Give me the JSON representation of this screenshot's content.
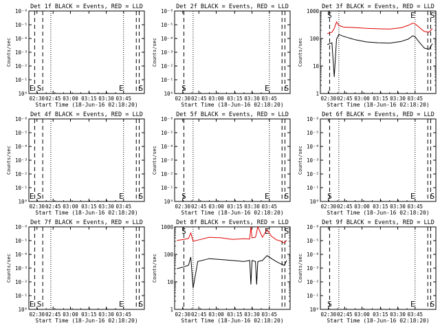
{
  "page": {
    "background": "#ffffff",
    "ink": "#000000",
    "red": "#e00000"
  },
  "chart_data": [
    {
      "type": "line",
      "title": "Det 1f BLACK = Events, RED = LLD",
      "xlabel": "Start Time (18-Jun-16 02:18:20)",
      "ylabel": "Counts/sec",
      "x_ticks": [
        "02:30",
        "02:45",
        "03:00",
        "03:15",
        "03:30",
        "03:45"
      ],
      "y_ticks": [
        "10⁰",
        "10⁻¹",
        "10⁻²",
        "10⁻³",
        "10⁻⁴",
        "10⁻⁵",
        "10⁻⁶"
      ],
      "markers": [
        "E",
        "S",
        "E",
        "S"
      ],
      "series": []
    },
    {
      "type": "line",
      "title": "Det 2f BLACK = Events, RED = LLD",
      "xlabel": "Start Time (18-Jun-16 02:18:20)",
      "ylabel": "Counts/sec",
      "x_ticks": [
        "02:30",
        "02:45",
        "03:00",
        "03:15",
        "03:30",
        "03:45"
      ],
      "y_ticks": [
        "10⁰",
        "10⁻¹",
        "10⁻²",
        "10⁻³",
        "10⁻⁴",
        "10⁻⁵",
        "10⁻⁶"
      ],
      "markers": [
        "S",
        "E",
        "S"
      ],
      "series": []
    },
    {
      "type": "line",
      "title": "Det 3f BLACK = Events, RED = LLD",
      "xlabel": "Start Time (18-Jun-16 02:18:20)",
      "ylabel": "Counts/sec",
      "x_ticks": [
        "02:30",
        "02:45",
        "03:00",
        "03:15",
        "03:30",
        "03:45"
      ],
      "y_ticks": [
        "1",
        "10",
        "100",
        "1000"
      ],
      "ylog": true,
      "ylim": [
        1,
        1000
      ],
      "markers": [
        "S",
        "E",
        "S"
      ],
      "series": [
        {
          "color": "red",
          "x": [
            0.06,
            0.1,
            0.12,
            0.14,
            0.16,
            0.2,
            0.3,
            0.4,
            0.5,
            0.6,
            0.7,
            0.76,
            0.8,
            0.82,
            0.86,
            0.9,
            0.94,
            0.97
          ],
          "y": [
            150,
            170,
            230,
            400,
            300,
            260,
            250,
            235,
            225,
            220,
            245,
            300,
            360,
            340,
            245,
            180,
            170,
            230
          ]
        },
        {
          "color": "black",
          "x": [
            0.06,
            0.1,
            0.12,
            0.14,
            0.16,
            0.2,
            0.3,
            0.4,
            0.5,
            0.6,
            0.7,
            0.76,
            0.8,
            0.82,
            0.86,
            0.9,
            0.94,
            0.97
          ],
          "y": [
            60,
            70,
            4,
            95,
            140,
            120,
            90,
            75,
            70,
            68,
            78,
            95,
            125,
            115,
            70,
            45,
            40,
            65
          ]
        }
      ]
    },
    {
      "type": "line",
      "title": "Det 4f BLACK = Events, RED = LLD",
      "xlabel": "Start Time (18-Jun-16 02:18:20)",
      "ylabel": "Counts/sec",
      "x_ticks": [
        "02:30",
        "02:45",
        "03:00",
        "03:15",
        "03:30",
        "03:45"
      ],
      "y_ticks": [
        "10⁰",
        "10⁻¹",
        "10⁻²",
        "10⁻³",
        "10⁻⁴",
        "10⁻⁵",
        "10⁻⁶"
      ],
      "markers": [
        "E",
        "S",
        "E",
        "S"
      ],
      "series": []
    },
    {
      "type": "line",
      "title": "Det 5f BLACK = Events, RED = LLD",
      "xlabel": "Start Time (18-Jun-16 02:18:20)",
      "ylabel": "Counts/sec",
      "x_ticks": [
        "02:30",
        "02:45",
        "03:00",
        "03:15",
        "03:30",
        "03:45"
      ],
      "y_ticks": [
        "10⁰",
        "10⁻¹",
        "10⁻²",
        "10⁻³",
        "10⁻⁴",
        "10⁻⁵",
        "10⁻⁶"
      ],
      "markers": [
        "S",
        "E",
        "S"
      ],
      "series": []
    },
    {
      "type": "line",
      "title": "Det 6f BLACK = Events, RED = LLD",
      "xlabel": "Start Time (18-Jun-16 02:18:20)",
      "ylabel": "Counts/sec",
      "x_ticks": [
        "02:30",
        "02:45",
        "03:00",
        "03:15",
        "03:30",
        "03:45"
      ],
      "y_ticks": [
        "10⁰",
        "10⁻¹",
        "10⁻²",
        "10⁻³",
        "10⁻⁴",
        "10⁻⁵",
        "10⁻⁶"
      ],
      "markers": [
        "S",
        "E",
        "S"
      ],
      "series": []
    },
    {
      "type": "line",
      "title": "Det 7f BLACK = Events, RED = LLD",
      "xlabel": "Start Time (18-Jun-16 02:18:20)",
      "ylabel": "Counts/sec",
      "x_ticks": [
        "02:30",
        "02:45",
        "03:00",
        "03:15",
        "03:30",
        "03:45"
      ],
      "y_ticks": [
        "10⁰",
        "10⁻¹",
        "10⁻²",
        "10⁻³",
        "10⁻⁴",
        "10⁻⁵",
        "10⁻⁶"
      ],
      "markers": [
        "E",
        "S",
        "E",
        "S"
      ],
      "series": []
    },
    {
      "type": "line",
      "title": "Det 8f BLACK = Events, RED = LLD",
      "xlabel": "Start Time (18-Jun-16 02:18:20)",
      "ylabel": "Counts/sec",
      "x_ticks": [
        "02:30",
        "02:45",
        "03:00",
        "03:15",
        "03:30",
        "03:45"
      ],
      "y_ticks": [
        "1",
        "10",
        "100",
        "1000"
      ],
      "ylog": true,
      "ylim": [
        1,
        1000
      ],
      "markers": [
        "S",
        "E",
        "S"
      ],
      "series": [
        {
          "color": "red",
          "x": [
            0.02,
            0.08,
            0.12,
            0.14,
            0.16,
            0.2,
            0.3,
            0.4,
            0.5,
            0.6,
            0.65,
            0.66,
            0.67,
            0.7,
            0.72,
            0.76,
            0.8,
            0.84,
            0.88,
            0.92,
            0.95,
            0.97
          ],
          "y": [
            320,
            350,
            380,
            600,
            300,
            330,
            420,
            400,
            350,
            370,
            360,
            1000,
            400,
            420,
            1000,
            420,
            800,
            450,
            340,
            300,
            260,
            330
          ]
        },
        {
          "color": "black",
          "x": [
            0.02,
            0.08,
            0.12,
            0.14,
            0.16,
            0.2,
            0.3,
            0.4,
            0.5,
            0.6,
            0.65,
            0.66,
            0.67,
            0.7,
            0.71,
            0.72,
            0.76,
            0.8,
            0.84,
            0.88,
            0.92,
            0.95,
            0.97
          ],
          "y": [
            30,
            35,
            40,
            80,
            6,
            55,
            70,
            65,
            60,
            55,
            60,
            8,
            60,
            55,
            8,
            55,
            60,
            90,
            70,
            55,
            45,
            40,
            60
          ]
        }
      ]
    },
    {
      "type": "line",
      "title": "Det 9f BLACK = Events, RED = LLD",
      "xlabel": "Start Time (18-Jun-16 02:18:20)",
      "ylabel": "Counts/sec",
      "x_ticks": [
        "02:30",
        "02:45",
        "03:00",
        "03:15",
        "03:30",
        "03:45"
      ],
      "y_ticks": [
        "10⁰",
        "10⁻¹",
        "10⁻²",
        "10⁻³",
        "10⁻⁴",
        "10⁻⁵",
        "10⁻⁶"
      ],
      "markers": [
        "S",
        "E",
        "S"
      ],
      "series": []
    }
  ]
}
